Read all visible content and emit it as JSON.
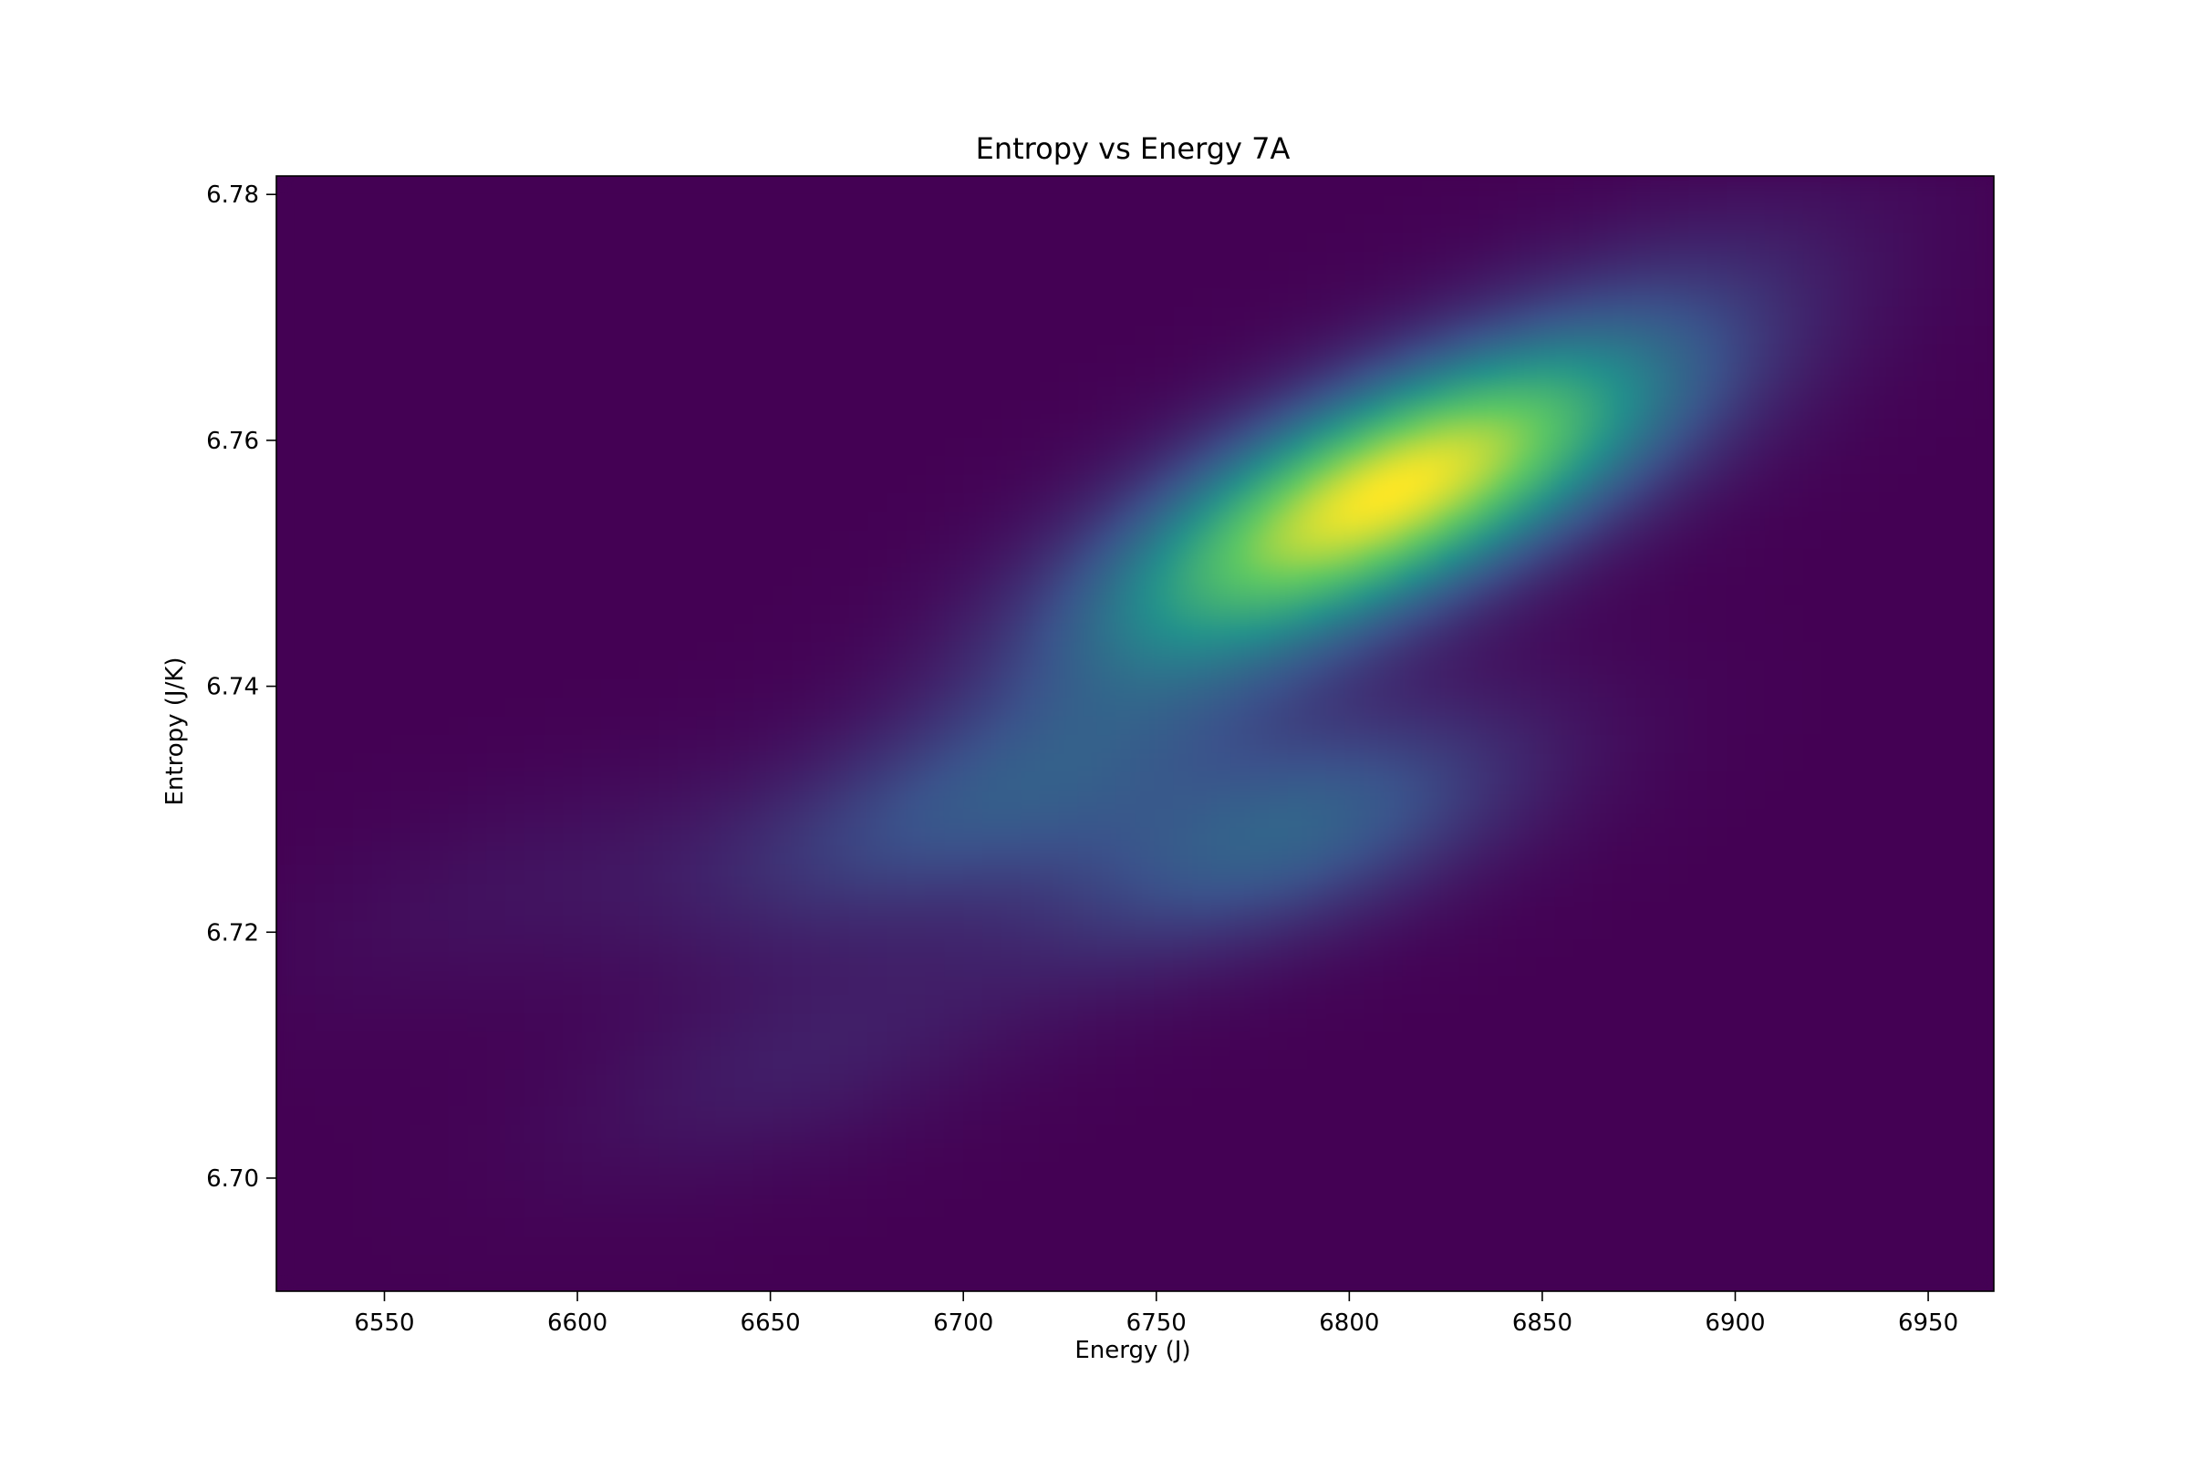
{
  "chart_data": {
    "type": "heatmap",
    "title": "Entropy vs Energy 7A",
    "xlabel": "Energy (J)",
    "ylabel": "Entropy (J/K)",
    "xlim": [
      6522,
      6967
    ],
    "ylim": [
      6.6908,
      6.7815
    ],
    "x_ticks": [
      6550,
      6600,
      6650,
      6700,
      6750,
      6800,
      6850,
      6900,
      6950
    ],
    "x_tick_labels": [
      "6550",
      "6600",
      "6650",
      "6700",
      "6750",
      "6800",
      "6850",
      "6900",
      "6950"
    ],
    "y_ticks": [
      6.7,
      6.72,
      6.74,
      6.76,
      6.78
    ],
    "y_tick_labels": [
      "6.70",
      "6.72",
      "6.74",
      "6.76",
      "6.78"
    ],
    "colormap": "viridis",
    "colormap_stops": [
      "#440154",
      "#3b528b",
      "#21918c",
      "#5ec962",
      "#fde725"
    ],
    "density_peaks": [
      {
        "energy": 6812,
        "entropy": 6.7565,
        "intensity": 1.0
      },
      {
        "energy": 6775,
        "entropy": 6.748,
        "intensity": 0.55
      },
      {
        "energy": 6785,
        "entropy": 6.728,
        "intensity": 0.46
      },
      {
        "energy": 6845,
        "entropy": 6.762,
        "intensity": 0.38
      },
      {
        "energy": 6725,
        "entropy": 6.733,
        "intensity": 0.28
      },
      {
        "energy": 6680,
        "entropy": 6.728,
        "intensity": 0.18
      },
      {
        "energy": 6660,
        "entropy": 6.71,
        "intensity": 0.13
      },
      {
        "energy": 6585,
        "entropy": 6.724,
        "intensity": 0.07
      },
      {
        "energy": 6880,
        "entropy": 6.772,
        "intensity": 0.12
      }
    ],
    "grid": false,
    "legend": "none"
  }
}
